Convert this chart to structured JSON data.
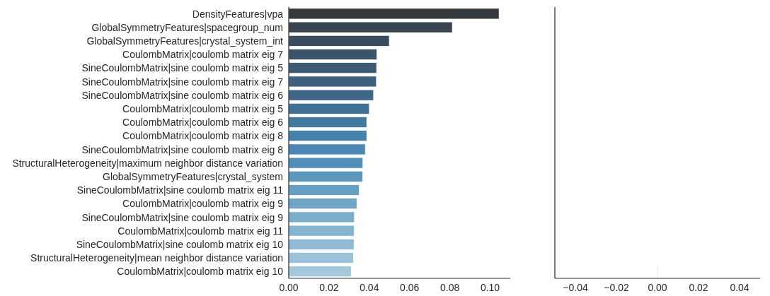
{
  "chart_data": [
    {
      "type": "bar",
      "orientation": "horizontal",
      "categories": [
        "DensityFeatures|vpa",
        "GlobalSymmetryFeatures|spacegroup_num",
        "GlobalSymmetryFeatures|crystal_system_int",
        "CoulombMatrix|coulomb matrix eig 7",
        "SineCoulombMatrix|sine coulomb matrix eig 5",
        "SineCoulombMatrix|sine coulomb matrix eig 7",
        "SineCoulombMatrix|sine coulomb matrix eig 6",
        "CoulombMatrix|coulomb matrix eig 5",
        "CoulombMatrix|coulomb matrix eig 6",
        "CoulombMatrix|coulomb matrix eig 8",
        "SineCoulombMatrix|sine coulomb matrix eig 8",
        "StructuralHeterogeneity|maximum neighbor distance variation",
        "GlobalSymmetryFeatures|crystal_system",
        "SineCoulombMatrix|sine coulomb matrix eig 11",
        "CoulombMatrix|coulomb matrix eig 9",
        "SineCoulombMatrix|sine coulomb matrix eig 9",
        "CoulombMatrix|coulomb matrix eig 11",
        "SineCoulombMatrix|sine coulomb matrix eig 10",
        "StructuralHeterogeneity|mean neighbor distance variation",
        "CoulombMatrix|coulomb matrix eig 10"
      ],
      "values": [
        0.1044,
        0.0812,
        0.0499,
        0.0437,
        0.0436,
        0.0435,
        0.0421,
        0.04,
        0.0387,
        0.0387,
        0.038,
        0.0368,
        0.0367,
        0.0349,
        0.0338,
        0.0326,
        0.0325,
        0.0324,
        0.0321,
        0.031
      ],
      "colors": [
        "#34393e",
        "#38444f",
        "#3a4d5e",
        "#3c5469",
        "#3d5a73",
        "#3e5f7e",
        "#3f6689",
        "#407094",
        "#427a9f",
        "#4581ab",
        "#4a88b5",
        "#5290ba",
        "#5b97bd",
        "#659fc1",
        "#70a6c5",
        "#7aaecb",
        "#85b4cf",
        "#91bbd4",
        "#9bc2d8",
        "#a6c8dd"
      ],
      "xlim": [
        0,
        0.11
      ],
      "xticks": [
        {
          "value": 0,
          "label": "0.00"
        },
        {
          "value": 0.02,
          "label": "0.02"
        },
        {
          "value": 0.04,
          "label": "0.04"
        },
        {
          "value": 0.06,
          "label": "0.06"
        },
        {
          "value": 0.08,
          "label": "0.08"
        },
        {
          "value": 0.1,
          "label": "0.10"
        }
      ]
    },
    {
      "type": "bar",
      "orientation": "horizontal",
      "categories": [
        null,
        null,
        null,
        null,
        null,
        null,
        null,
        null,
        null,
        null,
        null,
        null,
        null,
        null,
        null,
        null,
        null,
        null,
        null,
        null
      ],
      "values": [
        null,
        null,
        null,
        null,
        null,
        null,
        null,
        null,
        null,
        null,
        null,
        null,
        null,
        null,
        null,
        null,
        null,
        null,
        null,
        0
      ],
      "color": "#cfe0f0",
      "xlim": [
        -0.05,
        0.05
      ],
      "xticks": [
        {
          "value": -0.04,
          "label": "−0.04"
        },
        {
          "value": -0.02,
          "label": "−0.02"
        },
        {
          "value": 0,
          "label": "0.00"
        },
        {
          "value": 0.02,
          "label": "0.02"
        },
        {
          "value": 0.04,
          "label": "0.04"
        }
      ],
      "tick_labels": "x"
    }
  ]
}
